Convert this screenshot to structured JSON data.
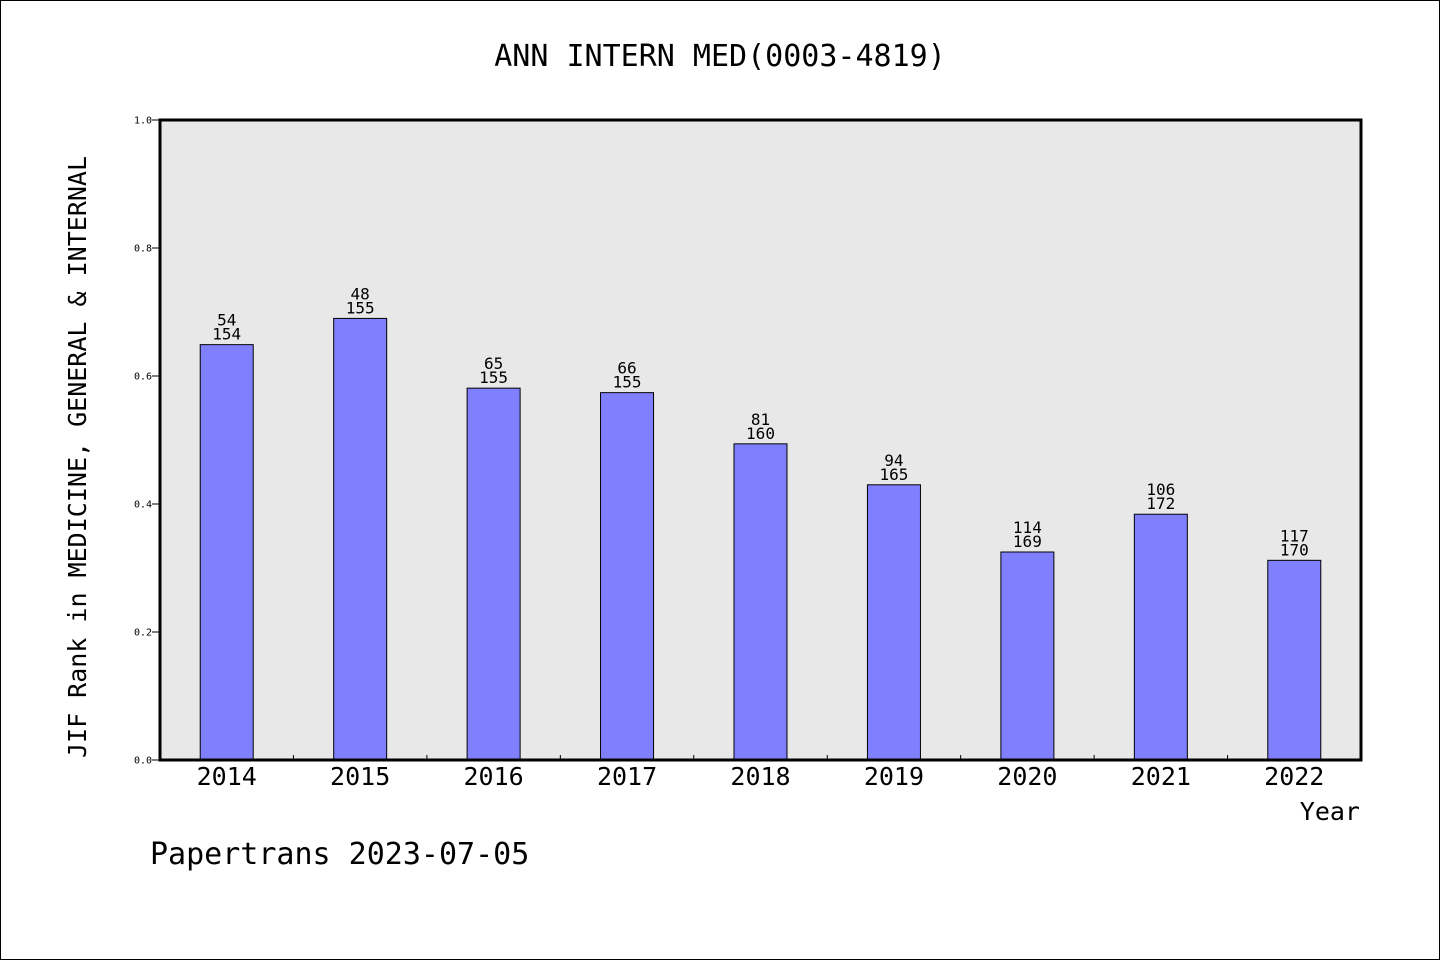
{
  "chart_data": {
    "type": "bar",
    "title": "ANN INTERN MED(0003-4819)",
    "xlabel": "Year",
    "ylabel": "JIF Rank in MEDICINE, GENERAL & INTERNAL",
    "ylim": [
      0.0,
      1.0
    ],
    "yticks": [
      "0.0",
      "0.2",
      "0.4",
      "0.6",
      "0.8",
      "1.0"
    ],
    "grid": false,
    "categories": [
      "2014",
      "2015",
      "2016",
      "2017",
      "2018",
      "2019",
      "2020",
      "2021",
      "2022"
    ],
    "values": [
      0.649,
      0.69,
      0.581,
      0.574,
      0.494,
      0.43,
      0.325,
      0.384,
      0.312
    ],
    "rank": [
      "54",
      "48",
      "65",
      "66",
      "81",
      "94",
      "114",
      "106",
      "117"
    ],
    "total": [
      "154",
      "155",
      "155",
      "155",
      "160",
      "165",
      "169",
      "172",
      "170"
    ],
    "colors": {
      "bar": "#8080ff",
      "plot_bg": "#e8e8e8"
    }
  },
  "footer": "Papertrans 2023-07-05"
}
